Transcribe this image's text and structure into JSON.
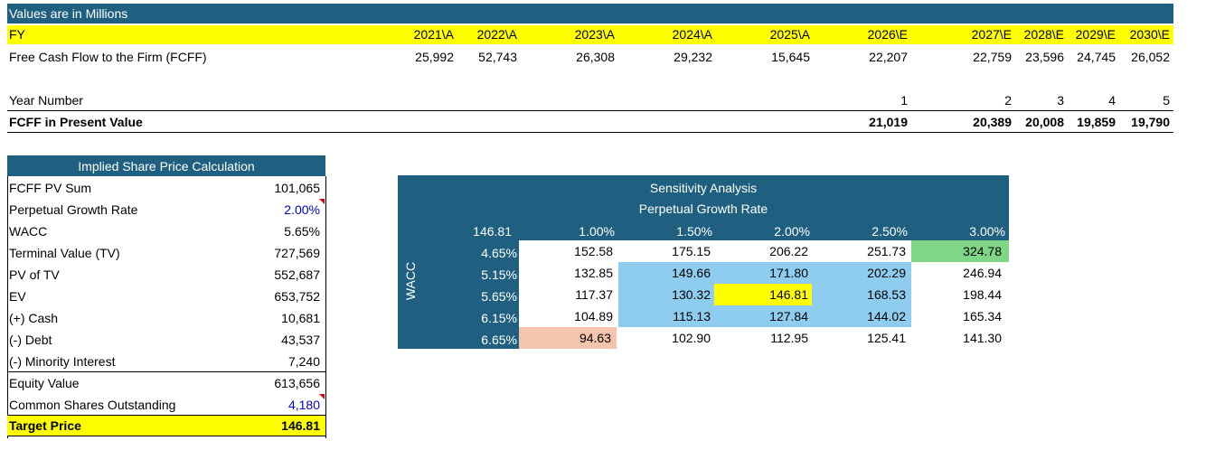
{
  "header": {
    "units": "Values are in Millions"
  },
  "fy": {
    "label": "FY",
    "years": [
      "2021\\A",
      "2022\\A",
      "2023\\A",
      "2024\\A",
      "2025\\A",
      "2026\\E",
      "2027\\E",
      "2028\\E",
      "2029\\E",
      "2030\\E"
    ]
  },
  "fcff": {
    "label": "Free Cash Flow to the Firm (FCFF)",
    "values": [
      "25,992",
      "52,743",
      "26,308",
      "29,232",
      "15,645",
      "22,207",
      "22,759",
      "23,596",
      "24,745",
      "26,052"
    ]
  },
  "year_number": {
    "label": "Year Number",
    "values": [
      "1",
      "2",
      "3",
      "4",
      "5"
    ]
  },
  "fcff_pv": {
    "label": "FCFF in Present Value",
    "values": [
      "21,019",
      "20,389",
      "20,008",
      "19,859",
      "19,790"
    ]
  },
  "implied": {
    "title": "Implied Share Price Calculation",
    "rows": [
      {
        "label": "FCFF PV Sum",
        "value": "101,065"
      },
      {
        "label": "Perpetual Growth Rate",
        "value": "2.00%"
      },
      {
        "label": "WACC",
        "value": "5.65%"
      },
      {
        "label": "Terminal Value (TV)",
        "value": "727,569"
      },
      {
        "label": "PV of TV",
        "value": "552,687"
      },
      {
        "label": "EV",
        "value": "653,752"
      },
      {
        "label": "(+) Cash",
        "value": "10,681"
      },
      {
        "label": "(-) Debt",
        "value": "43,537"
      },
      {
        "label": "(-) Minority Interest",
        "value": "7,240"
      },
      {
        "label": "Equity Value",
        "value": "613,656"
      },
      {
        "label": "Common Shares Outstanding",
        "value": "4,180"
      },
      {
        "label": "Target Price",
        "value": "146.81"
      }
    ]
  },
  "sensitivity": {
    "title": "Sensitivity Analysis",
    "col_header": "Perpetual Growth Rate",
    "row_header": "WACC",
    "corner": "146.81",
    "growth_rates": [
      "1.00%",
      "1.50%",
      "2.00%",
      "2.50%",
      "3.00%"
    ],
    "waccs": [
      "4.65%",
      "5.15%",
      "5.65%",
      "6.15%",
      "6.65%"
    ],
    "values": [
      [
        "152.58",
        "175.15",
        "206.22",
        "251.73",
        "324.78"
      ],
      [
        "132.85",
        "149.66",
        "171.80",
        "202.29",
        "246.94"
      ],
      [
        "117.37",
        "130.32",
        "146.81",
        "168.53",
        "198.44"
      ],
      [
        "104.89",
        "115.13",
        "127.84",
        "144.02",
        "165.34"
      ],
      [
        "94.63",
        "102.90",
        "112.95",
        "125.41",
        "141.30"
      ]
    ],
    "colors": {
      "blue": "#8ecdf0",
      "yellow": "#ffff00",
      "green": "#7ed686",
      "salmon": "#f5c4ad"
    }
  }
}
